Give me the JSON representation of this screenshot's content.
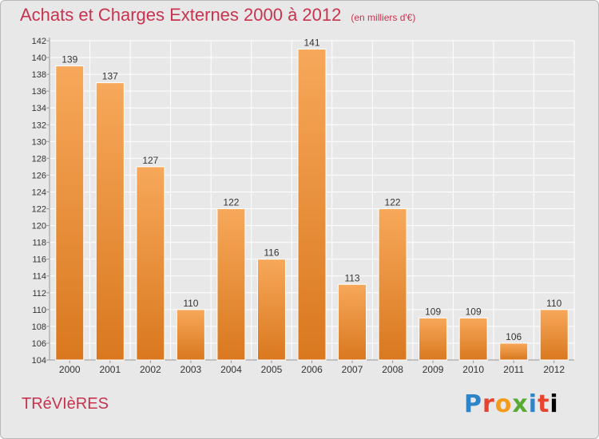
{
  "title": "Achats et Charges Externes 2000 à 2012",
  "subtitle": "(en milliers d'€)",
  "location": "TRéVIèRES",
  "logo_text": "Proxiti",
  "colors": {
    "title": "#c8334f",
    "bar_top": "#f7a85a",
    "bar_bottom": "#d9781f",
    "grid": "#ffffff",
    "background": "#e8e8e8"
  },
  "chart_data": {
    "type": "bar",
    "title": "Achats et Charges Externes 2000 à 2012",
    "xlabel": "",
    "ylabel": "",
    "categories": [
      "2000",
      "2001",
      "2002",
      "2003",
      "2004",
      "2005",
      "2006",
      "2007",
      "2008",
      "2009",
      "2010",
      "2011",
      "2012"
    ],
    "values": [
      139,
      137,
      127,
      110,
      122,
      116,
      141,
      113,
      122,
      109,
      109,
      106,
      110
    ],
    "ylim": [
      104,
      142
    ],
    "yticks": [
      104,
      106,
      108,
      110,
      112,
      114,
      116,
      118,
      120,
      122,
      124,
      126,
      128,
      130,
      132,
      134,
      136,
      138,
      140,
      142
    ],
    "grid": true,
    "legend": "none"
  }
}
